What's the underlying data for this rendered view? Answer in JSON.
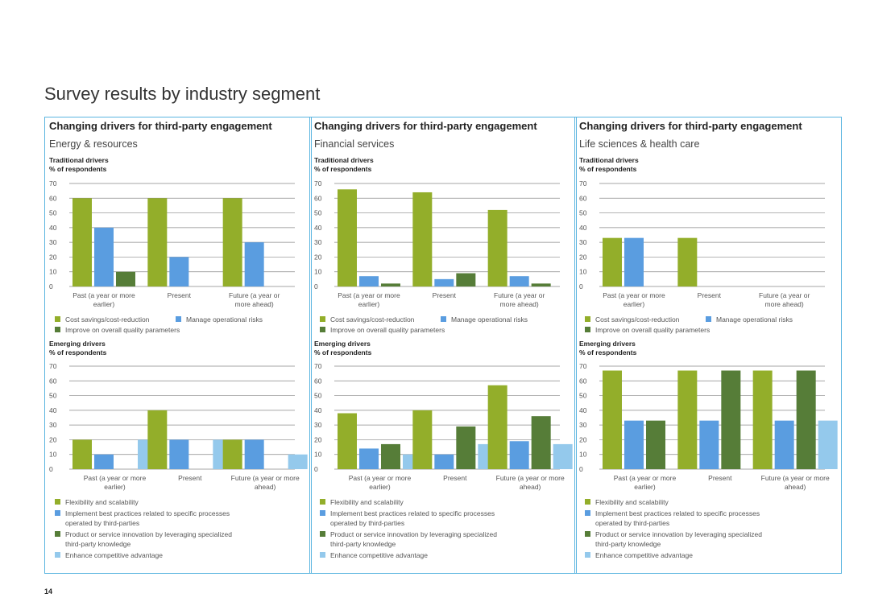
{
  "page_title": "Survey results by industry segment",
  "page_number": "14",
  "colors": {
    "green_light": "#93ae2a",
    "blue": "#5a9de0",
    "green_dark": "#567d38",
    "blue_light": "#94c9ec",
    "border": "#5bb5e0"
  },
  "chart_data": [
    {
      "type": "bar",
      "panel_title": "Changing drivers for third-party engagement",
      "segment": "Energy & resources",
      "title": "Traditional drivers",
      "ylabel": "% of respondents",
      "ylim": [
        0,
        70
      ],
      "yticks": [
        "0",
        "10",
        "20",
        "30",
        "40",
        "50",
        "60",
        "70"
      ],
      "categories": [
        "Past (a year or more earlier)",
        "Present",
        "Future (a year or more ahead)"
      ],
      "category_lines": [
        [
          "Past (a year or more",
          "earlier)"
        ],
        [
          "Present"
        ],
        [
          "Future (a year or",
          "more ahead)"
        ]
      ],
      "series": [
        {
          "name": "Cost savings/cost-reduction",
          "color": "#93ae2a",
          "values": [
            60,
            60,
            60
          ]
        },
        {
          "name": "Manage operational risks",
          "color": "#5a9de0",
          "values": [
            40,
            20,
            30
          ]
        },
        {
          "name": "Improve on overall quality parameters",
          "color": "#567d38",
          "values": [
            10,
            0,
            0
          ]
        }
      ]
    },
    {
      "type": "bar",
      "panel_title": "Changing drivers for third-party engagement",
      "segment": "Energy & resources",
      "title": "Emerging drivers",
      "ylabel": "% of respondents",
      "ylim": [
        0,
        70
      ],
      "yticks": [
        "0",
        "10",
        "20",
        "30",
        "40",
        "50",
        "60",
        "70"
      ],
      "categories": [
        "Past (a year or more earlier)",
        "Present",
        "Future (a year or more ahead)"
      ],
      "category_lines": [
        [
          "Past (a year or more",
          "earlier)"
        ],
        [
          "Present"
        ],
        [
          "Future (a year or more",
          "ahead)"
        ]
      ],
      "series": [
        {
          "name": "Flexibility and scalability",
          "color": "#93ae2a",
          "values": [
            20,
            40,
            20
          ]
        },
        {
          "name": "Implement best practices related to specific processes operated by third-parties",
          "lines": [
            "Implement best practices related to specific processes",
            "operated by third-parties"
          ],
          "color": "#5a9de0",
          "values": [
            10,
            20,
            20
          ]
        },
        {
          "name": "Product or service innovation by leveraging specialized third-party knowledge",
          "lines": [
            "Product or service innovation by leveraging specialized",
            "third-party knowledge"
          ],
          "color": "#567d38",
          "values": [
            0,
            0,
            0
          ]
        },
        {
          "name": "Enhance competitive advantage",
          "color": "#94c9ec",
          "values": [
            20,
            20,
            10
          ]
        }
      ]
    },
    {
      "type": "bar",
      "panel_title": "Changing drivers for third-party engagement",
      "segment": "Financial services",
      "title": "Traditional drivers",
      "ylabel": "% of respondents",
      "ylim": [
        0,
        70
      ],
      "yticks": [
        "0",
        "10",
        "20",
        "30",
        "40",
        "50",
        "60",
        "70"
      ],
      "categories": [
        "Past (a year or more earlier)",
        "Present",
        "Future (a year or more ahead)"
      ],
      "category_lines": [
        [
          "Past (a year or more",
          "earlier)"
        ],
        [
          "Present"
        ],
        [
          "Future (a year or",
          "more ahead)"
        ]
      ],
      "series": [
        {
          "name": "Cost savings/cost-reduction",
          "color": "#93ae2a",
          "values": [
            66,
            64,
            52
          ]
        },
        {
          "name": "Manage operational risks",
          "color": "#5a9de0",
          "values": [
            7,
            5,
            7
          ]
        },
        {
          "name": "Improve on overall quality parameters",
          "color": "#567d38",
          "values": [
            2,
            9,
            2
          ]
        }
      ]
    },
    {
      "type": "bar",
      "panel_title": "Changing drivers for third-party engagement",
      "segment": "Financial services",
      "title": "Emerging drivers",
      "ylabel": "% of respondents",
      "ylim": [
        0,
        70
      ],
      "yticks": [
        "0",
        "10",
        "20",
        "30",
        "40",
        "50",
        "60",
        "70"
      ],
      "categories": [
        "Past (a year or more earlier)",
        "Present",
        "Future (a year or more ahead)"
      ],
      "category_lines": [
        [
          "Past (a year or more",
          "earlier)"
        ],
        [
          "Present"
        ],
        [
          "Future (a year or more",
          "ahead)"
        ]
      ],
      "series": [
        {
          "name": "Flexibility and scalability",
          "color": "#93ae2a",
          "values": [
            38,
            40,
            57
          ]
        },
        {
          "name": "Implement best practices related to specific processes operated by third-parties",
          "lines": [
            "Implement best practices related to specific processes",
            "operated by third-parties"
          ],
          "color": "#5a9de0",
          "values": [
            14,
            10,
            19
          ]
        },
        {
          "name": "Product or service innovation by leveraging specialized third-party knowledge",
          "lines": [
            "Product or service innovation by leveraging specialized",
            "third-party knowledge"
          ],
          "color": "#567d38",
          "values": [
            17,
            29,
            36
          ]
        },
        {
          "name": "Enhance competitive advantage",
          "color": "#94c9ec",
          "values": [
            10,
            17,
            17
          ]
        }
      ]
    },
    {
      "type": "bar",
      "panel_title": "Changing drivers for third-party engagement",
      "segment": "Life sciences & health care",
      "title": "Traditional drivers",
      "ylabel": "% of respondents",
      "ylim": [
        0,
        70
      ],
      "yticks": [
        "0",
        "10",
        "20",
        "30",
        "40",
        "50",
        "60",
        "70"
      ],
      "categories": [
        "Past (a year or more earlier)",
        "Present",
        "Future (a year or more ahead)"
      ],
      "category_lines": [
        [
          "Past (a year or more",
          "earlier)"
        ],
        [
          "Present"
        ],
        [
          "Future (a year or",
          "more ahead)"
        ]
      ],
      "series": [
        {
          "name": "Cost savings/cost-reduction",
          "color": "#93ae2a",
          "values": [
            33,
            33,
            0
          ]
        },
        {
          "name": "Manage operational risks",
          "color": "#5a9de0",
          "values": [
            33,
            0,
            0
          ]
        },
        {
          "name": "Improve on overall quality parameters",
          "color": "#567d38",
          "values": [
            0,
            0,
            0
          ]
        }
      ]
    },
    {
      "type": "bar",
      "panel_title": "Changing drivers for third-party engagement",
      "segment": "Life sciences & health care",
      "title": "Emerging drivers",
      "ylabel": "% of respondents",
      "ylim": [
        0,
        70
      ],
      "yticks": [
        "0",
        "10",
        "20",
        "30",
        "40",
        "50",
        "60",
        "70"
      ],
      "categories": [
        "Past (a year or more earlier)",
        "Present",
        "Future (a year or more ahead)"
      ],
      "category_lines": [
        [
          "Past (a year or more",
          "earlier)"
        ],
        [
          "Present"
        ],
        [
          "Future (a year or more",
          "ahead)"
        ]
      ],
      "series": [
        {
          "name": "Flexibility and scalability",
          "color": "#93ae2a",
          "values": [
            67,
            67,
            67
          ]
        },
        {
          "name": "Implement best practices related to specific processes operated by third-parties",
          "lines": [
            "Implement best practices related to specific processes",
            "operated by third-parties"
          ],
          "color": "#5a9de0",
          "values": [
            33,
            33,
            33
          ]
        },
        {
          "name": "Product or service innovation by leveraging specialized third-party knowledge",
          "lines": [
            "Product or service innovation by leveraging specialized",
            "third-party knowledge"
          ],
          "color": "#567d38",
          "values": [
            33,
            67,
            67
          ]
        },
        {
          "name": "Enhance competitive advantage",
          "color": "#94c9ec",
          "values": [
            0,
            0,
            33
          ]
        }
      ]
    }
  ]
}
